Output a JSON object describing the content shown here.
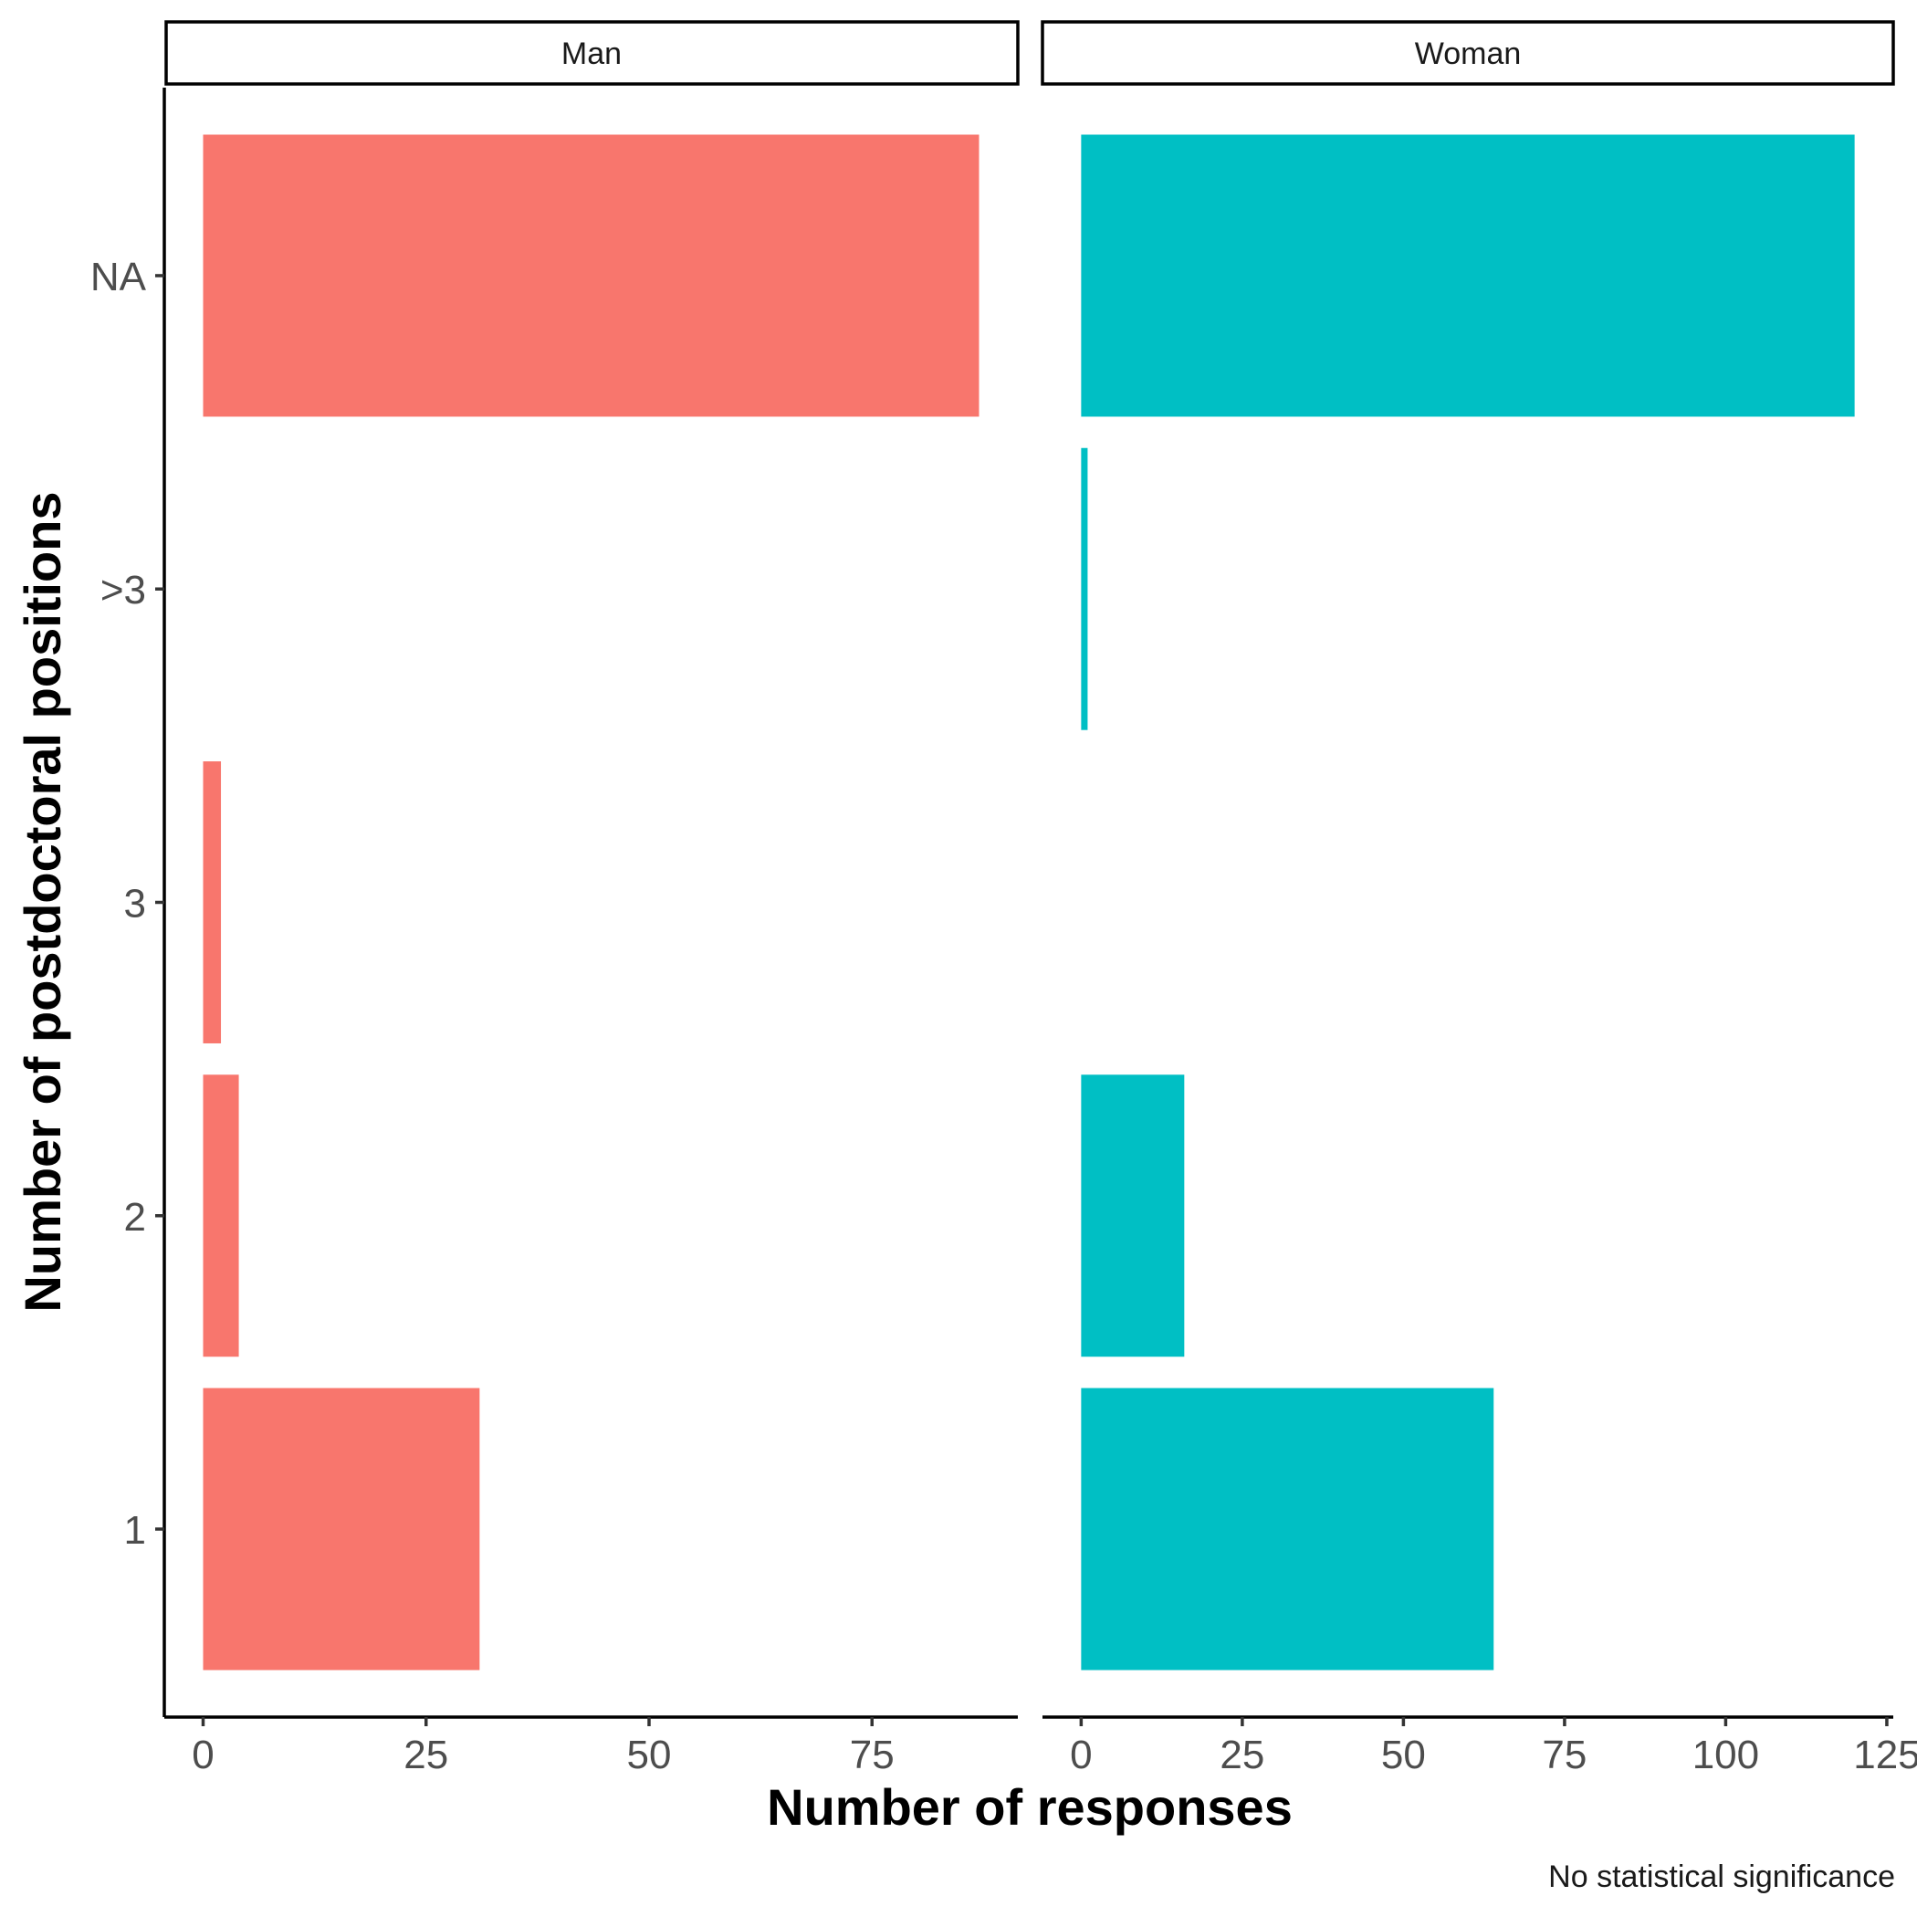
{
  "chart_data": {
    "type": "bar",
    "orientation": "horizontal",
    "xlabel": "Number of responses",
    "ylabel": "Number of postdoctoral positions",
    "caption": "No statistical significance",
    "categories": [
      "1",
      "2",
      "3",
      ">3",
      "NA"
    ],
    "facets": [
      {
        "name": "Man",
        "color": "#F8766D",
        "values": [
          31,
          4,
          2,
          0,
          87
        ],
        "xlim": [
          -4.35,
          91.35
        ],
        "xticks": [
          "0",
          "25",
          "50",
          "75"
        ]
      },
      {
        "name": "Woman",
        "color": "#00BFC4",
        "values": [
          64,
          16,
          0,
          1,
          120
        ],
        "xlim": [
          -6,
          126
        ],
        "xticks": [
          "0",
          "25",
          "50",
          "75",
          "100",
          "125"
        ]
      }
    ]
  }
}
